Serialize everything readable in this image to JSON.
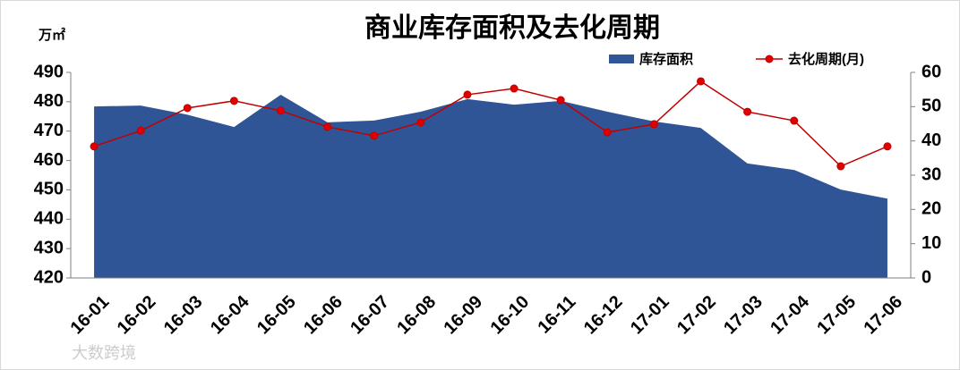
{
  "chart_data": {
    "type": "area-line",
    "title": "商业库存面积及去化周期",
    "y_label": "万㎡",
    "watermark": "大数跨境",
    "categories": [
      "16-01",
      "16-02",
      "16-03",
      "16-04",
      "16-05",
      "16-06",
      "16-07",
      "16-08",
      "16-09",
      "16-10",
      "16-11",
      "16-12",
      "17-01",
      "17-02",
      "17-03",
      "17-04",
      "17-05",
      "17-06"
    ],
    "series": [
      {
        "name": "库存面积",
        "color": "#2f5597",
        "kind": "area",
        "values": [
          478.4,
          478.7,
          475.6,
          471.4,
          482.4,
          473,
          473.6,
          476.6,
          480.9,
          479,
          480.3,
          476.6,
          473.3,
          471.1,
          459,
          456.8,
          450.1,
          447
        ]
      },
      {
        "name": "去化周期(月)",
        "color": "#c00000",
        "kind": "line",
        "axis": "y2",
        "values": [
          38.4,
          43,
          49.6,
          51.7,
          48.8,
          44.1,
          41.5,
          45.4,
          53.5,
          55.3,
          51.9,
          42.5,
          44.9,
          57.4,
          48.5,
          45.9,
          32.6,
          38.4
        ]
      }
    ],
    "ylim": [
      420,
      490
    ],
    "yticks": [
      420,
      430,
      440,
      450,
      460,
      470,
      480,
      490
    ],
    "y2lim": [
      0,
      60
    ],
    "y2ticks": [
      0,
      10,
      20,
      30,
      40,
      50,
      60
    ]
  }
}
